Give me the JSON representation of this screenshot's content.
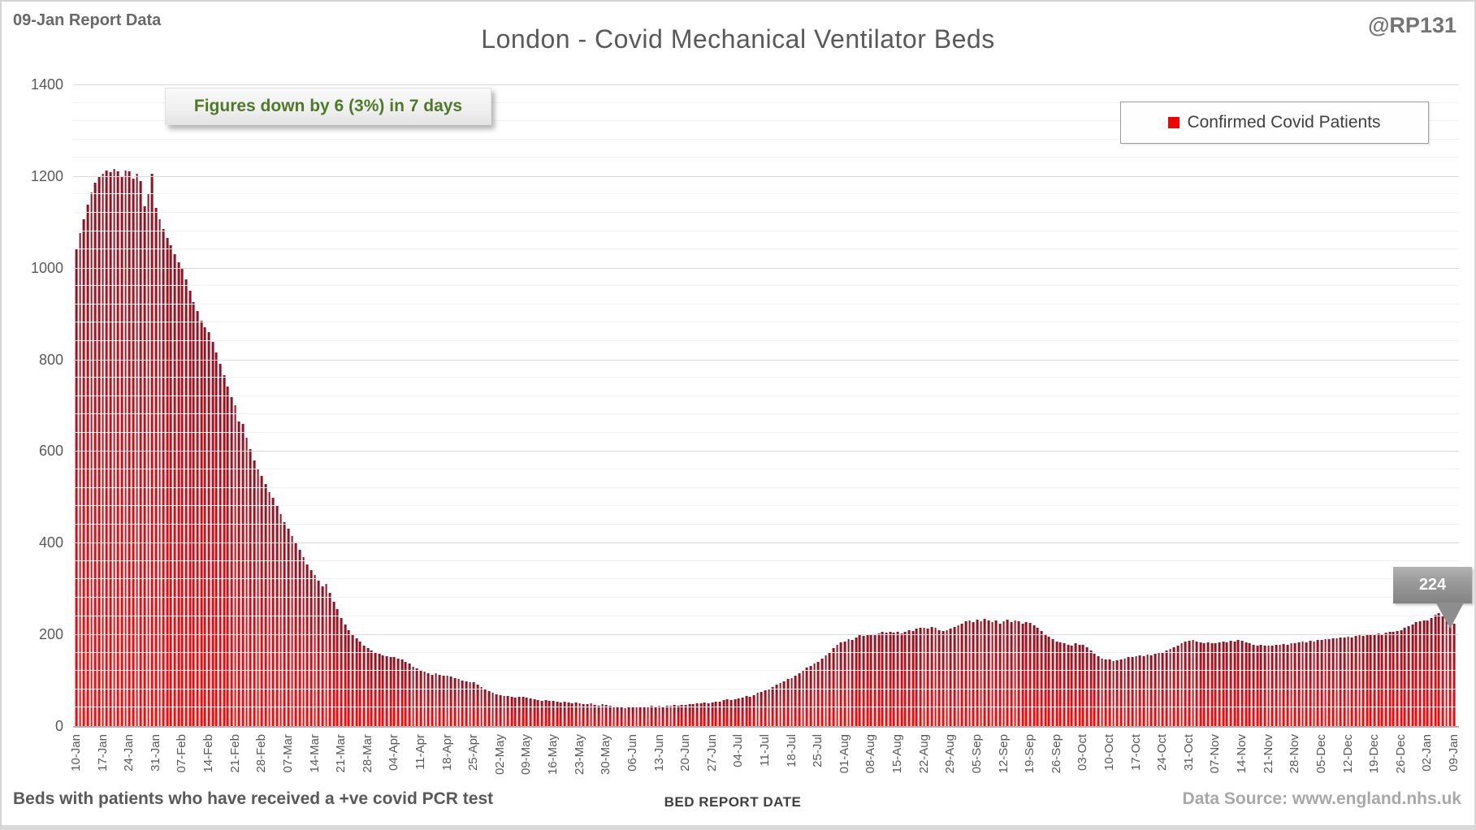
{
  "header": {
    "report_label": "09-Jan Report Data",
    "title": "London - Covid Mechanical Ventilator Beds",
    "handle": "@RP131"
  },
  "annotation": {
    "text": "Figures down by 6 (3%) in 7 days",
    "text_color": "#4e7a27"
  },
  "legend": {
    "label": "Confirmed Covid Patients",
    "marker_color": "#ee0404",
    "position": "top-right"
  },
  "callout": {
    "value": "224",
    "points_to": "09-Jan"
  },
  "footer": {
    "left_note": "Beds with patients who have received a +ve covid PCR test",
    "axis_title": "BED REPORT DATE",
    "data_source": "Data Source: www.england.nhs.uk"
  },
  "colors": {
    "bar_top": "#8c1322",
    "bar_bottom": "#ff0606",
    "grid_major": "#dadada",
    "grid_minor": "#f1f1f1",
    "text_gray": "#595959",
    "green_accent": "#4e7a27"
  },
  "chart_data": {
    "type": "bar",
    "title": "London - Covid Mechanical Ventilator Beds",
    "xlabel": "BED REPORT DATE",
    "ylabel": "",
    "series_name": "Confirmed Covid Patients",
    "ylim": [
      0,
      1400
    ],
    "major_step": 200,
    "minor_step": 40,
    "grid": true,
    "bar_width_pct": 0.165,
    "x_tick_interval_days": 7,
    "x_tick_labels": [
      "10-Jan",
      "17-Jan",
      "24-Jan",
      "31-Jan",
      "07-Feb",
      "14-Feb",
      "21-Feb",
      "28-Feb",
      "07-Mar",
      "14-Mar",
      "21-Mar",
      "28-Mar",
      "04-Apr",
      "11-Apr",
      "18-Apr",
      "25-Apr",
      "02-May",
      "09-May",
      "16-May",
      "23-May",
      "30-May",
      "06-Jun",
      "13-Jun",
      "20-Jun",
      "27-Jun",
      "04-Jul",
      "11-Jul",
      "18-Jul",
      "25-Jul",
      "01-Aug",
      "08-Aug",
      "15-Aug",
      "22-Aug",
      "29-Aug",
      "05-Sep",
      "12-Sep",
      "19-Sep",
      "26-Sep",
      "03-Oct",
      "10-Oct",
      "17-Oct",
      "24-Oct",
      "31-Oct",
      "07-Nov",
      "14-Nov",
      "21-Nov",
      "28-Nov",
      "05-Dec",
      "12-Dec",
      "19-Dec",
      "26-Dec",
      "02-Jan",
      "09-Jan"
    ],
    "last_value": 224,
    "peak_value": 1215,
    "values": [
      1040,
      1075,
      1105,
      1138,
      1165,
      1185,
      1198,
      1205,
      1212,
      1208,
      1215,
      1210,
      1198,
      1212,
      1210,
      1195,
      1205,
      1190,
      1135,
      1160,
      1205,
      1130,
      1105,
      1085,
      1065,
      1050,
      1030,
      1012,
      1000,
      975,
      950,
      925,
      905,
      885,
      870,
      860,
      838,
      815,
      790,
      765,
      740,
      718,
      700,
      665,
      660,
      630,
      605,
      580,
      560,
      545,
      528,
      510,
      498,
      480,
      462,
      445,
      430,
      415,
      400,
      385,
      368,
      352,
      340,
      330,
      318,
      305,
      310,
      290,
      272,
      255,
      235,
      222,
      210,
      200,
      192,
      185,
      176,
      170,
      165,
      160,
      158,
      155,
      152,
      150,
      150,
      148,
      145,
      140,
      136,
      130,
      126,
      122,
      118,
      115,
      112,
      115,
      112,
      110,
      110,
      108,
      105,
      102,
      100,
      98,
      96,
      95,
      90,
      85,
      80,
      76,
      72,
      70,
      68,
      66,
      65,
      63,
      62,
      64,
      63,
      62,
      60,
      58,
      57,
      55,
      56,
      55,
      55,
      53,
      52,
      54,
      51,
      50,
      52,
      50,
      48,
      47,
      49,
      46,
      45,
      47,
      46,
      44,
      42,
      40,
      41,
      39,
      40,
      40,
      42,
      41,
      43,
      42,
      44,
      43,
      44,
      43,
      45,
      44,
      46,
      45,
      46,
      46,
      48,
      47,
      49,
      50,
      51,
      50,
      52,
      54,
      53,
      56,
      58,
      57,
      59,
      60,
      62,
      65,
      63,
      68,
      72,
      75,
      78,
      82,
      85,
      90,
      94,
      98,
      102,
      105,
      110,
      116,
      122,
      128,
      132,
      136,
      140,
      148,
      155,
      162,
      170,
      178,
      182,
      185,
      190,
      188,
      194,
      198,
      196,
      200,
      200,
      198,
      202,
      205,
      203,
      206,
      204,
      205,
      202,
      206,
      210,
      208,
      212,
      214,
      215,
      212,
      216,
      214,
      210,
      208,
      210,
      212,
      216,
      220,
      224,
      228,
      230,
      226,
      232,
      228,
      234,
      230,
      226,
      230,
      224,
      228,
      232,
      226,
      230,
      228,
      224,
      226,
      225,
      220,
      215,
      208,
      200,
      195,
      190,
      185,
      182,
      180,
      178,
      176,
      180,
      178,
      178,
      172,
      165,
      158,
      152,
      148,
      146,
      145,
      142,
      144,
      146,
      148,
      150,
      151,
      152,
      154,
      153,
      156,
      155,
      158,
      159,
      160,
      164,
      168,
      172,
      176,
      180,
      184,
      186,
      188,
      185,
      183,
      180,
      182,
      181,
      180,
      182,
      185,
      183,
      186,
      184,
      187,
      186,
      183,
      180,
      178,
      176,
      177,
      176,
      175,
      176,
      178,
      177,
      179,
      178,
      180,
      180,
      182,
      184,
      183,
      186,
      185,
      187,
      188,
      190,
      189,
      192,
      191,
      194,
      193,
      195,
      194,
      196,
      198,
      197,
      199,
      198,
      200,
      202,
      201,
      204,
      206,
      205,
      208,
      210,
      214,
      218,
      222,
      226,
      228,
      230,
      230,
      236,
      242,
      246,
      240,
      234,
      228,
      224
    ]
  }
}
